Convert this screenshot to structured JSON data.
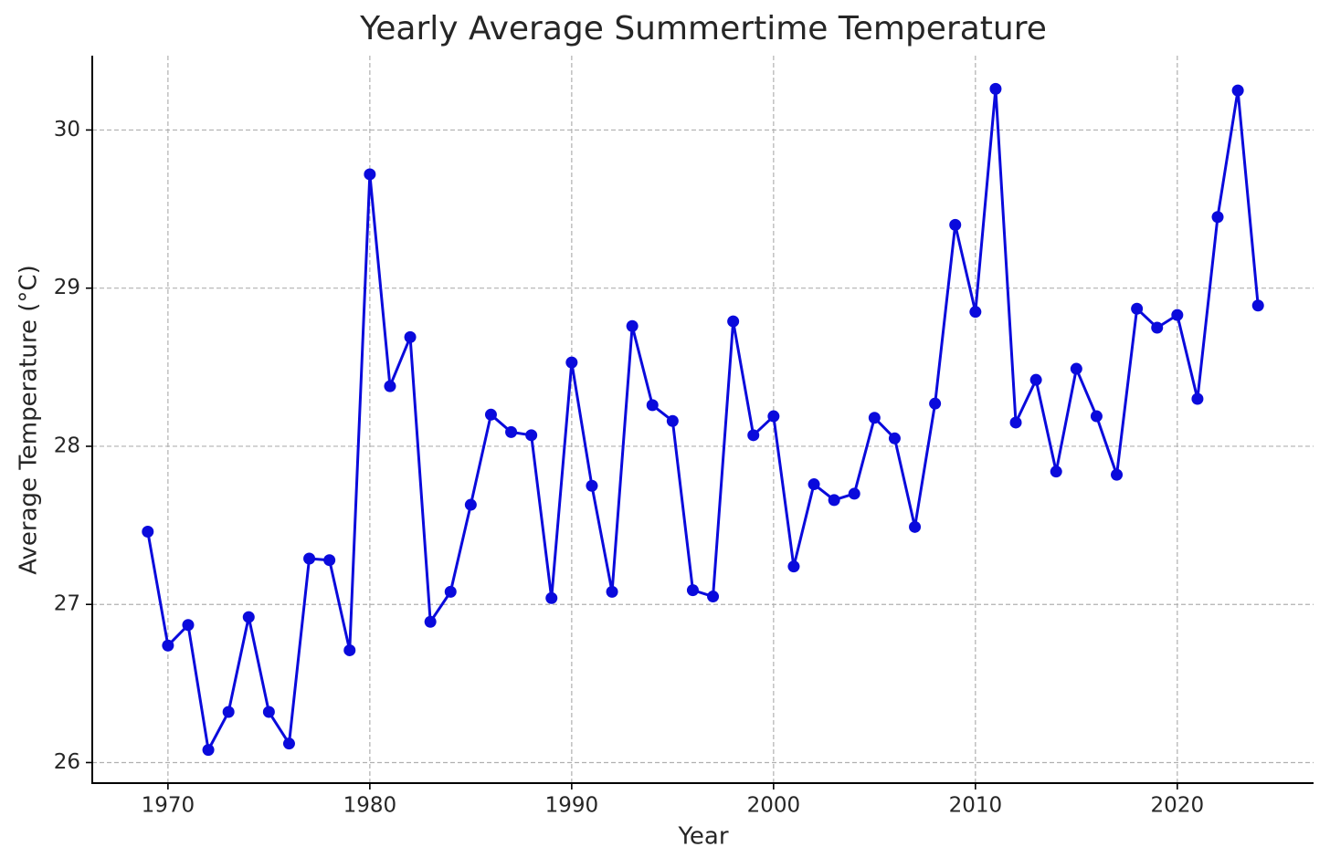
{
  "chart_data": {
    "type": "line",
    "title": "Yearly Average Summertime Temperature",
    "x_label": "Year",
    "y_label": "Average Temperature (°C)",
    "x": [
      1969,
      1970,
      1971,
      1972,
      1973,
      1974,
      1975,
      1976,
      1977,
      1978,
      1979,
      1980,
      1981,
      1982,
      1983,
      1984,
      1985,
      1986,
      1987,
      1988,
      1989,
      1990,
      1991,
      1992,
      1993,
      1994,
      1995,
      1996,
      1997,
      1998,
      1999,
      2000,
      2001,
      2002,
      2003,
      2004,
      2005,
      2006,
      2007,
      2008,
      2009,
      2010,
      2011,
      2012,
      2013,
      2014,
      2015,
      2016,
      2017,
      2018,
      2019,
      2020,
      2021,
      2022,
      2023,
      2024
    ],
    "values": [
      27.46,
      26.74,
      26.87,
      26.08,
      26.32,
      26.92,
      26.32,
      26.12,
      27.29,
      27.28,
      26.71,
      29.72,
      28.38,
      28.69,
      26.89,
      27.08,
      27.63,
      28.2,
      28.09,
      28.07,
      27.04,
      28.53,
      27.75,
      27.08,
      28.76,
      28.26,
      28.16,
      27.09,
      27.05,
      28.79,
      28.07,
      28.19,
      27.24,
      27.76,
      27.66,
      27.7,
      28.18,
      28.05,
      27.49,
      28.27,
      29.4,
      28.85,
      30.26,
      28.15,
      28.42,
      27.84,
      28.49,
      28.19,
      27.82,
      28.87,
      28.75,
      28.83,
      28.3,
      29.45,
      30.25,
      28.89
    ],
    "color": "#0a0adc",
    "marker": true,
    "xlim": [
      1966.25,
      2026.75
    ],
    "xticks": [
      1970,
      1980,
      1990,
      2000,
      2010,
      2020
    ],
    "ylim": [
      25.87,
      30.47
    ],
    "yticks": [
      26,
      27,
      28,
      29,
      30
    ],
    "grid": true
  }
}
